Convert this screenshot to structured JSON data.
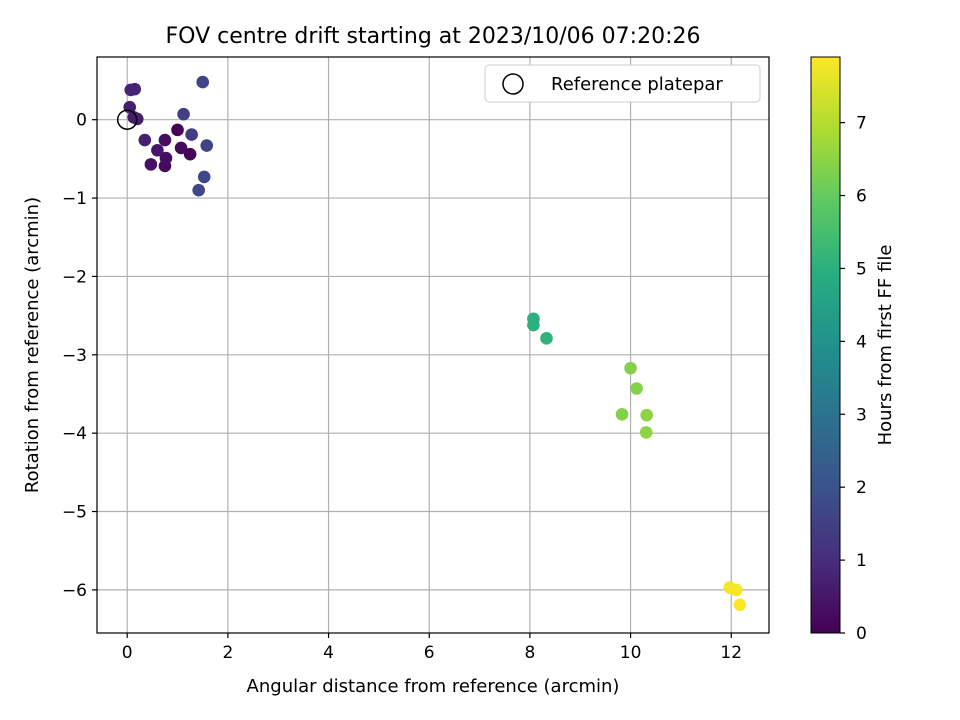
{
  "chart_data": {
    "type": "scatter",
    "title": "FOV centre drift starting at 2023/10/06 07:20:26",
    "xlabel": "Angular distance from reference (arcmin)",
    "ylabel": "Rotation from reference (arcmin)",
    "xlim": [
      -0.6,
      12.75
    ],
    "ylim": [
      -6.55,
      0.8
    ],
    "xticks": [
      0,
      2,
      4,
      6,
      8,
      10,
      12
    ],
    "yticks": [
      0,
      -1,
      -2,
      -3,
      -4,
      -5,
      -6
    ],
    "xtick_labels": [
      "0",
      "2",
      "4",
      "6",
      "8",
      "10",
      "12"
    ],
    "ytick_labels": [
      "0",
      "−1",
      "−2",
      "−3",
      "−4",
      "−5",
      "−6"
    ],
    "grid": true,
    "legend": {
      "position": "top-right",
      "entries": [
        "Reference platepar"
      ]
    },
    "reference_point": {
      "x": 0,
      "y": 0
    },
    "colorbar": {
      "label": "Hours from first FF file",
      "colormap": "viridis",
      "range": [
        0,
        7.9
      ],
      "ticks": [
        0,
        1,
        2,
        3,
        4,
        5,
        6,
        7
      ],
      "tick_labels": [
        "0",
        "1",
        "2",
        "3",
        "4",
        "5",
        "6",
        "7"
      ]
    },
    "series": [
      {
        "points": [
          {
            "x": 1.0,
            "y": -0.13,
            "c": 0.0
          },
          {
            "x": 1.25,
            "y": -0.44,
            "c": 0.1
          },
          {
            "x": 0.75,
            "y": -0.59,
            "c": 0.2
          },
          {
            "x": 1.07,
            "y": -0.36,
            "c": 0.2
          },
          {
            "x": 0.77,
            "y": -0.49,
            "c": 0.3
          },
          {
            "x": 0.75,
            "y": -0.26,
            "c": 0.3
          },
          {
            "x": 0.47,
            "y": -0.57,
            "c": 0.4
          },
          {
            "x": 0.6,
            "y": -0.39,
            "c": 0.5
          },
          {
            "x": 0.2,
            "y": 0.01,
            "c": 0.6
          },
          {
            "x": 0.13,
            "y": 0.03,
            "c": 0.6
          },
          {
            "x": 0.05,
            "y": 0.16,
            "c": 0.7
          },
          {
            "x": 0.35,
            "y": -0.26,
            "c": 0.7
          },
          {
            "x": 0.07,
            "y": 0.38,
            "c": 0.8
          },
          {
            "x": 0.15,
            "y": 0.39,
            "c": 0.8
          },
          {
            "x": 1.28,
            "y": -0.19,
            "c": 1.4
          },
          {
            "x": 1.12,
            "y": 0.07,
            "c": 1.5
          },
          {
            "x": 1.5,
            "y": 0.48,
            "c": 1.6
          },
          {
            "x": 1.58,
            "y": -0.33,
            "c": 1.6
          },
          {
            "x": 1.53,
            "y": -0.73,
            "c": 1.7
          },
          {
            "x": 1.42,
            "y": -0.9,
            "c": 1.7
          },
          {
            "x": 8.07,
            "y": -2.54,
            "c": 5.0
          },
          {
            "x": 8.07,
            "y": -2.62,
            "c": 5.0
          },
          {
            "x": 8.33,
            "y": -2.79,
            "c": 5.1
          },
          {
            "x": 10.0,
            "y": -3.17,
            "c": 6.4
          },
          {
            "x": 10.12,
            "y": -3.43,
            "c": 6.4
          },
          {
            "x": 9.83,
            "y": -3.76,
            "c": 6.4
          },
          {
            "x": 10.32,
            "y": -3.77,
            "c": 6.5
          },
          {
            "x": 10.31,
            "y": -3.99,
            "c": 6.5
          },
          {
            "x": 11.97,
            "y": -5.97,
            "c": 7.8
          },
          {
            "x": 12.1,
            "y": -6.0,
            "c": 7.8
          },
          {
            "x": 12.17,
            "y": -6.19,
            "c": 7.9
          }
        ]
      }
    ]
  }
}
